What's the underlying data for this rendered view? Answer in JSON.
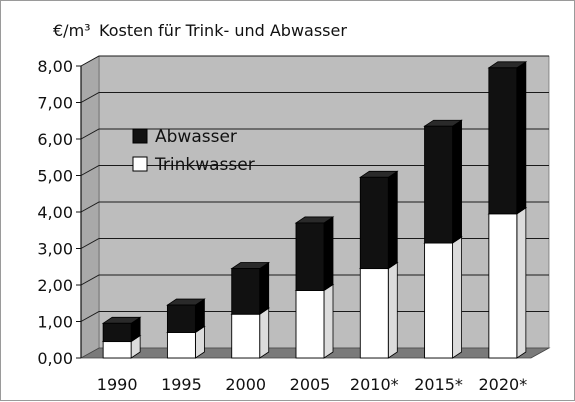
{
  "chart_data": {
    "type": "bar",
    "stacked": true,
    "style": "3d-column",
    "unit_label": "€/m³",
    "title": "Kosten für Trink- und Abwasser",
    "categories": [
      "1990",
      "1995",
      "2000",
      "2005",
      "2010*",
      "2015*",
      "2020*"
    ],
    "series": [
      {
        "name": "Trinkwasser",
        "values": [
          0.45,
          0.7,
          1.2,
          1.85,
          2.45,
          3.15,
          3.95
        ],
        "color": "#ffffff"
      },
      {
        "name": "Abwasser",
        "values": [
          0.5,
          0.75,
          1.25,
          1.85,
          2.5,
          3.2,
          4.0
        ],
        "color": "#111111"
      }
    ],
    "y_ticks": [
      "0,00",
      "1,00",
      "2,00",
      "3,00",
      "4,00",
      "5,00",
      "6,00",
      "7,00",
      "8,00"
    ],
    "ylim": [
      0,
      8
    ],
    "grid": true,
    "legend_position": "top-left",
    "legend_order": [
      "Abwasser",
      "Trinkwasser"
    ],
    "colors": {
      "plot_background": "#bdbdbd",
      "floor": "#7a7a7a",
      "gridline": "#1a1a1a"
    }
  }
}
